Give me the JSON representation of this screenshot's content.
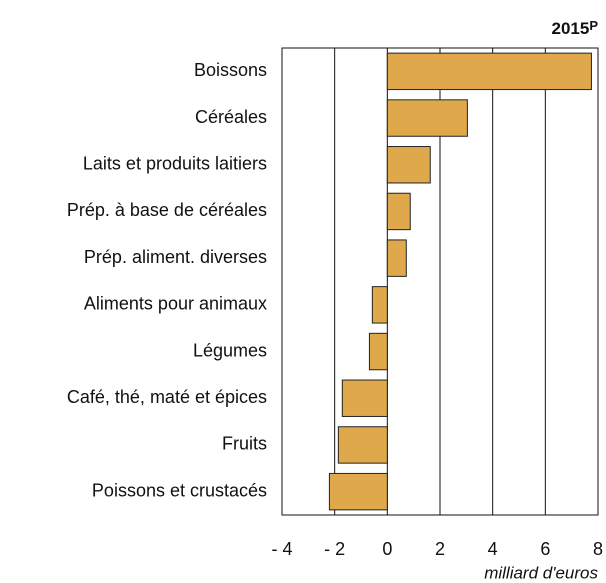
{
  "chart_data": {
    "type": "barh",
    "subtitle": "2015",
    "subtitle_mark": "P",
    "categories": [
      "Boissons",
      "Céréales",
      "Laits et produits laitiers",
      "Prép. à base de céréales",
      "Prép. aliment. diverses",
      "Aliments pour animaux",
      "Légumes",
      "Café, thé, maté et épices",
      "Fruits",
      "Poissons et crustacés"
    ],
    "values": [
      7.75,
      3.04,
      1.63,
      0.87,
      0.72,
      -0.57,
      -0.68,
      -1.71,
      -1.86,
      -2.2
    ],
    "color": "#dfa94b",
    "xlim": [
      -4,
      8
    ],
    "xticks": [
      {
        "value": -4,
        "label": "- 4"
      },
      {
        "value": -2,
        "label": "- 2"
      },
      0,
      2,
      4,
      6,
      8
    ],
    "xlabel": "milliard d'euros",
    "grid": true
  }
}
